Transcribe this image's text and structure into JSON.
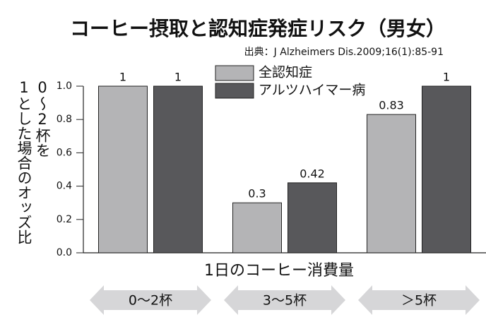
{
  "chart_data": {
    "type": "bar",
    "title": "コーヒー摂取と認知症発症リスク（男女）",
    "source": "出典：J Alzheimers Dis.2009;16(1):85-91",
    "y_label": [
      "0〜2杯を",
      "1とした場合のオッズ比"
    ],
    "x_label": "1日のコーヒー消費量",
    "categories": [
      "0〜2杯",
      "3〜5杯",
      "＞5杯"
    ],
    "series": [
      {
        "name": "全認知症",
        "color": "#b4b4b6",
        "values": [
          1,
          0.3,
          0.83
        ]
      },
      {
        "name": "アルツハイマー病",
        "color": "#58585b",
        "values": [
          1,
          0.42,
          1
        ]
      }
    ],
    "ylim": [
      0,
      1
    ],
    "yticks": [
      {
        "value": 0,
        "label": "0.0"
      },
      {
        "value": 0.2,
        "label": "0.2"
      },
      {
        "value": 0.4,
        "label": "0.4"
      },
      {
        "value": 0.6,
        "label": "0.6"
      },
      {
        "value": 0.8,
        "label": "0.8"
      },
      {
        "value": 1,
        "label": "1.0"
      }
    ],
    "legend": "top"
  }
}
